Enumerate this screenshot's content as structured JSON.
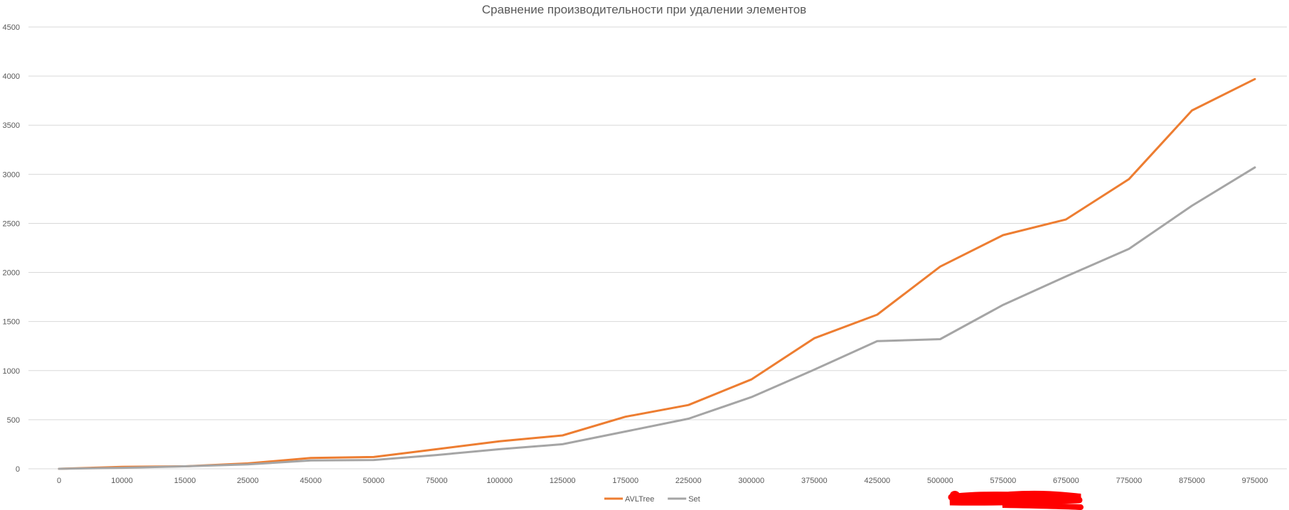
{
  "chart_data": {
    "type": "line",
    "title": "Сравнение производительности при удалении элементов",
    "xlabel": "",
    "ylabel": "",
    "categories": [
      "0",
      "10000",
      "15000",
      "25000",
      "45000",
      "50000",
      "75000",
      "100000",
      "125000",
      "175000",
      "225000",
      "300000",
      "375000",
      "425000",
      "500000",
      "575000",
      "675000",
      "775000",
      "875000",
      "975000"
    ],
    "ylim": [
      0,
      4500
    ],
    "yticks": [
      0,
      500,
      1000,
      1500,
      2000,
      2500,
      3000,
      3500,
      4000,
      4500
    ],
    "grid": true,
    "legend_position": "bottom",
    "series": [
      {
        "name": "AVLTree",
        "color": "#ed7d31",
        "values": [
          0,
          20,
          25,
          55,
          110,
          120,
          200,
          280,
          340,
          530,
          650,
          910,
          1330,
          1570,
          2060,
          2380,
          2540,
          2950,
          3650,
          3970
        ]
      },
      {
        "name": "Set",
        "color": "#a5a5a5",
        "values": [
          0,
          10,
          25,
          45,
          85,
          90,
          140,
          200,
          250,
          380,
          510,
          730,
          1010,
          1300,
          1320,
          1670,
          1960,
          2240,
          2680,
          3070
        ]
      }
    ],
    "redaction_color": "#ff0000"
  }
}
